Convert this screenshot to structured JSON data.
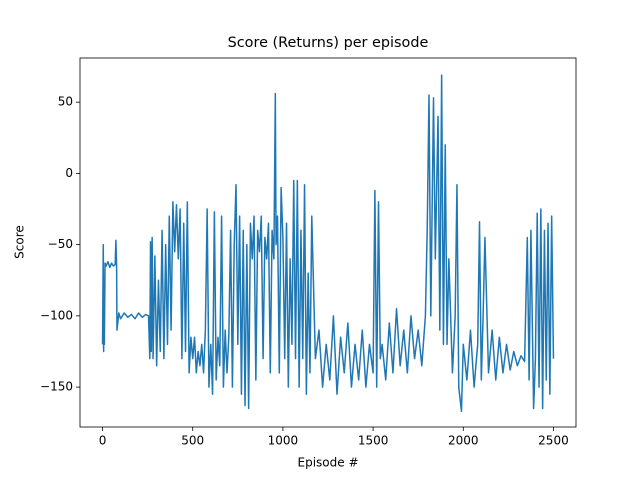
{
  "chart_data": {
    "type": "line",
    "title": "Score (Returns) per episode",
    "xlabel": "Episode #",
    "ylabel": "Score",
    "xlim": [
      -125,
      2625
    ],
    "ylim": [
      -178,
      81
    ],
    "xticks": [
      0,
      500,
      1000,
      1500,
      2000,
      2500
    ],
    "yticks": [
      {
        "value": -150,
        "label": "−150"
      },
      {
        "value": -100,
        "label": "−100"
      },
      {
        "value": -50,
        "label": "−50"
      },
      0,
      50
    ],
    "x": [
      0,
      4,
      6,
      8,
      10,
      14,
      20,
      30,
      40,
      50,
      60,
      70,
      74,
      78,
      80,
      90,
      100,
      120,
      140,
      160,
      180,
      200,
      220,
      240,
      255,
      262,
      266,
      270,
      275,
      280,
      290,
      300,
      310,
      320,
      330,
      340,
      350,
      360,
      370,
      380,
      390,
      400,
      410,
      420,
      430,
      440,
      450,
      460,
      470,
      480,
      490,
      500,
      510,
      520,
      530,
      540,
      550,
      560,
      570,
      580,
      590,
      600,
      610,
      620,
      630,
      640,
      650,
      660,
      670,
      680,
      690,
      700,
      710,
      720,
      730,
      740,
      750,
      760,
      770,
      780,
      790,
      800,
      810,
      820,
      830,
      840,
      850,
      860,
      870,
      880,
      890,
      900,
      910,
      920,
      930,
      940,
      950,
      958,
      962,
      970,
      980,
      990,
      1000,
      1010,
      1020,
      1030,
      1040,
      1050,
      1060,
      1070,
      1080,
      1090,
      1100,
      1110,
      1120,
      1130,
      1140,
      1150,
      1160,
      1180,
      1200,
      1220,
      1240,
      1260,
      1280,
      1300,
      1320,
      1340,
      1360,
      1380,
      1400,
      1420,
      1440,
      1460,
      1480,
      1500,
      1510,
      1520,
      1530,
      1540,
      1550,
      1570,
      1590,
      1610,
      1630,
      1650,
      1670,
      1690,
      1710,
      1730,
      1750,
      1770,
      1790,
      1800,
      1810,
      1820,
      1835,
      1845,
      1860,
      1870,
      1880,
      1890,
      1900,
      1910,
      1920,
      1940,
      1955,
      1965,
      1975,
      1990,
      2000,
      2020,
      2040,
      2060,
      2080,
      2090,
      2100,
      2110,
      2120,
      2140,
      2160,
      2180,
      2200,
      2220,
      2240,
      2260,
      2280,
      2300,
      2320,
      2340,
      2355,
      2365,
      2375,
      2390,
      2400,
      2410,
      2420,
      2430,
      2440,
      2450,
      2460,
      2470,
      2480,
      2490,
      2500
    ],
    "series": [
      {
        "color": "#1f77b4",
        "values": [
          -120,
          -50,
          -125,
          -95,
          -120,
          -63,
          -65,
          -62,
          -66,
          -63,
          -65,
          -64,
          -47,
          -65,
          -110,
          -98,
          -102,
          -98,
          -101,
          -99,
          -102,
          -98,
          -101,
          -99,
          -100,
          -130,
          -48,
          -125,
          -45,
          -130,
          -58,
          -135,
          -75,
          -125,
          -40,
          -130,
          -50,
          -120,
          -30,
          -110,
          -20,
          -55,
          -22,
          -60,
          -25,
          -130,
          -35,
          -125,
          -20,
          -140,
          -115,
          -130,
          -115,
          -140,
          -125,
          -135,
          -120,
          -140,
          -110,
          -25,
          -150,
          -120,
          -155,
          -27,
          -145,
          -115,
          -135,
          -30,
          -150,
          -110,
          -140,
          -115,
          -40,
          -150,
          -50,
          -8,
          -120,
          -30,
          -155,
          -40,
          -163,
          -50,
          -165,
          -35,
          -60,
          -30,
          -145,
          -40,
          -55,
          -30,
          -130,
          -45,
          -60,
          -35,
          -140,
          -40,
          -60,
          56,
          -50,
          -30,
          -140,
          -10,
          -45,
          -130,
          -35,
          -150,
          -60,
          -120,
          -5,
          -130,
          -5,
          -150,
          -40,
          -130,
          -8,
          -155,
          -70,
          -140,
          -30,
          -130,
          -110,
          -150,
          -120,
          -145,
          -100,
          -155,
          -115,
          -140,
          -105,
          -150,
          -120,
          -145,
          -110,
          -150,
          -120,
          -140,
          -12,
          -150,
          -20,
          -130,
          -120,
          -145,
          -105,
          -140,
          -95,
          -135,
          -110,
          -140,
          -100,
          -130,
          -110,
          -135,
          -100,
          -40,
          55,
          -100,
          53,
          -60,
          40,
          -110,
          69,
          -120,
          20,
          -120,
          -60,
          -140,
          -100,
          -8,
          -150,
          -167,
          -120,
          -145,
          -110,
          -150,
          -120,
          -34,
          -145,
          -100,
          -45,
          -140,
          -110,
          -145,
          -115,
          -140,
          -120,
          -138,
          -125,
          -135,
          -128,
          -132,
          -45,
          -145,
          -40,
          -165,
          -130,
          -28,
          -150,
          -25,
          -165,
          -40,
          -145,
          -35,
          -155,
          -30,
          -130
        ]
      }
    ]
  }
}
